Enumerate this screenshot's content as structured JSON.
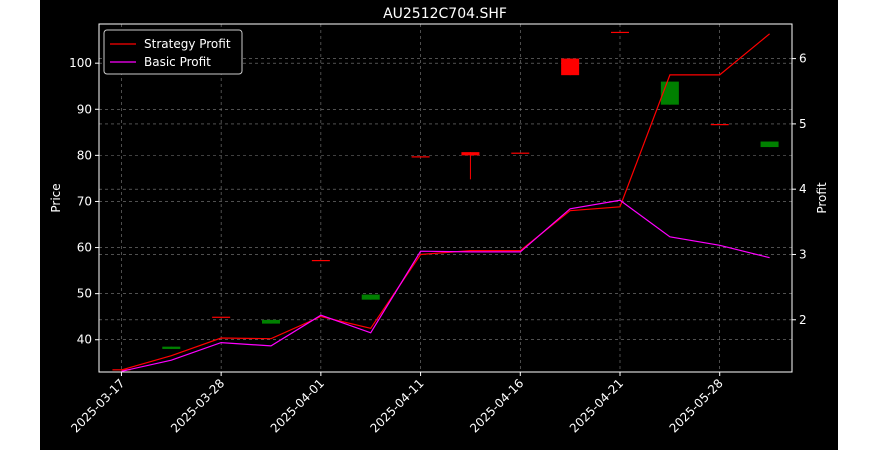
{
  "chart_data": {
    "type": "line",
    "title": "AU2512C704.SHF",
    "ylabel_left": "Price",
    "ylabel_right": "Profit",
    "x_tick_labels": [
      "2025-03-17",
      "2025-03-28",
      "2025-04-01",
      "2025-04-11",
      "2025-04-16",
      "2025-04-21",
      "2025-05-28"
    ],
    "y_left_ticks": [
      40,
      50,
      60,
      70,
      80,
      90,
      100
    ],
    "y_right_ticks": [
      2,
      3,
      4,
      5,
      6
    ],
    "ylim_left": [
      33,
      108.5
    ],
    "ylim_right": [
      1.2,
      6.53
    ],
    "xlim": [
      -0.45,
      13.45
    ],
    "grid": true,
    "legend_position": "upper-left",
    "background": "#000000",
    "up_color": "#ff0000",
    "down_color": "#008000",
    "candles": [
      {
        "o": 33.6,
        "h": 33.6,
        "l": 33.6,
        "c": 33.6
      },
      {
        "o": 38.5,
        "h": 38.5,
        "l": 38.0,
        "c": 38.0
      },
      {
        "o": 45.0,
        "h": 45.0,
        "l": 45.0,
        "c": 45.0
      },
      {
        "o": 44.3,
        "h": 44.3,
        "l": 43.5,
        "c": 43.5
      },
      {
        "o": 57.3,
        "h": 57.3,
        "l": 57.3,
        "c": 57.3
      },
      {
        "o": 49.8,
        "h": 49.8,
        "l": 48.7,
        "c": 48.7
      },
      {
        "o": 79.8,
        "h": 79.8,
        "l": 79.8,
        "c": 79.8
      },
      {
        "o": 80.0,
        "h": 80.7,
        "l": 74.8,
        "c": 80.7
      },
      {
        "o": 80.6,
        "h": 80.6,
        "l": 80.6,
        "c": 80.6
      },
      {
        "o": 97.4,
        "h": 101.0,
        "l": 97.4,
        "c": 101.0
      },
      {
        "o": 106.8,
        "h": 106.8,
        "l": 106.8,
        "c": 106.8
      },
      {
        "o": 96.0,
        "h": 96.0,
        "l": 91.0,
        "c": 91.0
      },
      {
        "o": 86.8,
        "h": 86.8,
        "l": 86.8,
        "c": 86.8
      },
      {
        "o": 83.0,
        "h": 83.0,
        "l": 81.8,
        "c": 81.8
      }
    ],
    "series": [
      {
        "name": "Strategy Profit",
        "color": "#ff0000",
        "values": [
          1.23,
          1.45,
          1.72,
          1.71,
          2.05,
          1.87,
          3.0,
          3.06,
          3.06,
          3.67,
          3.73,
          5.75,
          5.75,
          6.38
        ]
      },
      {
        "name": "Basic Profit",
        "color": "#ff00ff",
        "values": [
          1.21,
          1.38,
          1.65,
          1.6,
          2.07,
          1.8,
          3.05,
          3.04,
          3.04,
          3.7,
          3.83,
          3.27,
          3.14,
          2.95
        ]
      }
    ]
  }
}
